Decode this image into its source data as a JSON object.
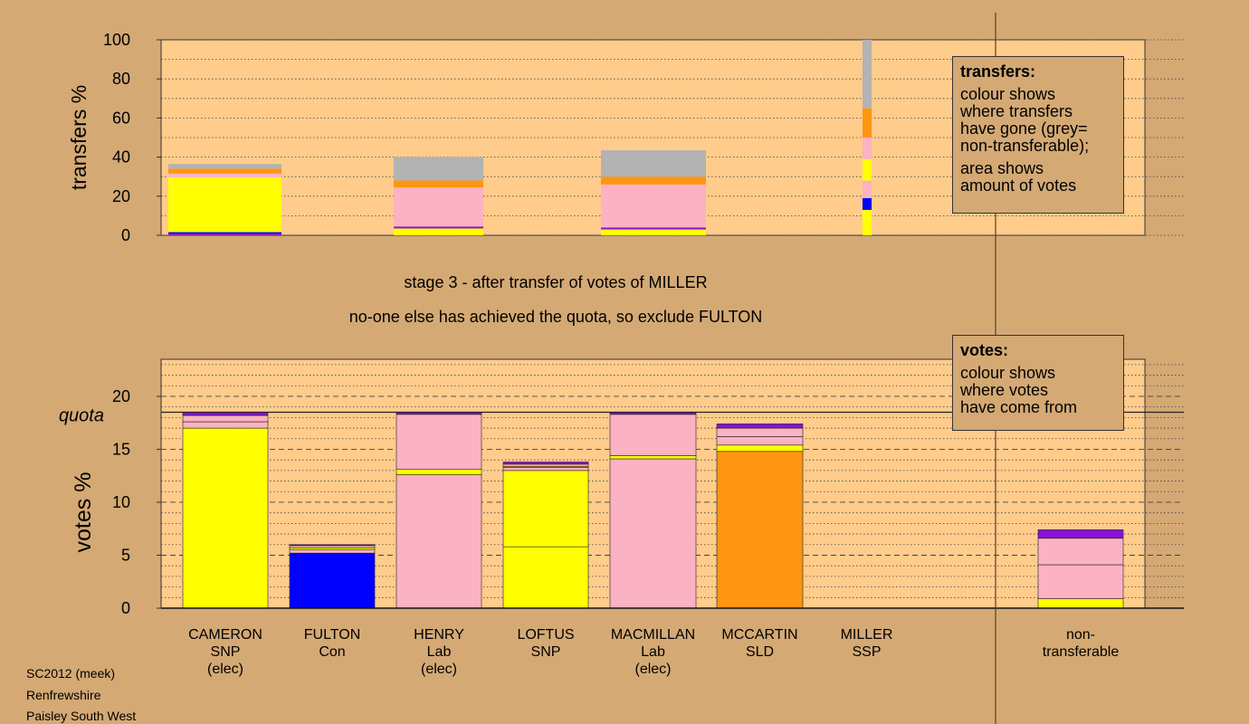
{
  "colors": {
    "background": "#D4A974",
    "plot_bg": "#FFCC8C",
    "SNP": "#FFFF00",
    "Con": "#0000FF",
    "Lab": "#FBB2C2",
    "SLD": "#FF9511",
    "SSP": "#8B10D5",
    "nontransferable": "#B3B3B3"
  },
  "stage_text": {
    "line1": "stage 3 - after transfer of votes of MILLER",
    "line2": "no-one else has achieved the quota, so exclude FULTON"
  },
  "transfers_legend": {
    "title": "transfers:",
    "lines1": [
      "colour shows",
      "where transfers",
      "have gone (grey=",
      "non-transferable);"
    ],
    "lines2": [
      "area shows",
      "amount of votes"
    ]
  },
  "votes_legend": {
    "title": "votes:",
    "lines": [
      "colour shows",
      "where votes",
      "have come from"
    ]
  },
  "footer": [
    "SC2012 (meek)",
    "Renfrewshire",
    "Paisley South West"
  ],
  "chart_data": [
    {
      "type": "bar",
      "stacked": true,
      "name": "transfers",
      "ylabel": "transfers %",
      "ylim": [
        0,
        100
      ],
      "yticks": [
        0,
        20,
        40,
        60,
        80,
        100
      ],
      "grid": "dotted horizontal",
      "bars": [
        {
          "candidate": "CAMERON",
          "width": "wide",
          "segments": [
            {
              "party": "SSP",
              "value": 0.8
            },
            {
              "party": "Con",
              "value": 0.8
            },
            {
              "party": "SNP",
              "value": 28.0
            },
            {
              "party": "Lab",
              "value": 2.0
            },
            {
              "party": "SLD",
              "value": 2.5
            },
            {
              "party": "nontransferable",
              "value": 2.4
            }
          ]
        },
        {
          "candidate": "HENRY",
          "width": "wide",
          "segments": [
            {
              "party": "SNP",
              "value": 3.5
            },
            {
              "party": "SSP",
              "value": 1.0
            },
            {
              "party": "Lab",
              "value": 20.0
            },
            {
              "party": "SLD",
              "value": 3.5
            },
            {
              "party": "nontransferable",
              "value": 12.0
            }
          ]
        },
        {
          "candidate": "MACMILLAN",
          "width": "wide",
          "segments": [
            {
              "party": "SNP",
              "value": 3.0
            },
            {
              "party": "SSP",
              "value": 1.0
            },
            {
              "party": "Lab",
              "value": 22.0
            },
            {
              "party": "SLD",
              "value": 4.0
            },
            {
              "party": "nontransferable",
              "value": 13.5
            }
          ]
        },
        {
          "candidate": "MILLER",
          "width": "narrow",
          "segments": [
            {
              "party": "SNP",
              "value": 13.0
            },
            {
              "party": "Con",
              "value": 6.0
            },
            {
              "party": "Lab",
              "value": 9.0
            },
            {
              "party": "SNP",
              "value": 11.0
            },
            {
              "party": "Lab",
              "value": 11.0
            },
            {
              "party": "SLD",
              "value": 15.0
            },
            {
              "party": "nontransferable",
              "value": 35.0
            }
          ]
        }
      ]
    },
    {
      "type": "bar",
      "stacked": true,
      "name": "votes",
      "ylabel": "votes %",
      "ylim": [
        0,
        23.5
      ],
      "yticks": [
        0,
        5,
        10,
        15,
        20
      ],
      "quota": 18.5,
      "quota_label": "quota",
      "grid": "dashed at major ticks, dotted minor",
      "candidates": [
        {
          "name": "CAMERON",
          "party": "SNP",
          "note": "(elec)",
          "segments": [
            {
              "party": "SNP",
              "value": 17.0
            },
            {
              "party": "Lab",
              "value": 0.6
            },
            {
              "party": "Lab",
              "value": 0.6
            },
            {
              "party": "SSP",
              "value": 0.3
            }
          ]
        },
        {
          "name": "FULTON",
          "party": "Con",
          "note": "",
          "segments": [
            {
              "party": "Con",
              "value": 5.2
            },
            {
              "party": "Lab",
              "value": 0.3
            },
            {
              "party": "SNP",
              "value": 0.2
            },
            {
              "party": "Lab",
              "value": 0.2
            },
            {
              "party": "SSP",
              "value": 0.1
            }
          ]
        },
        {
          "name": "HENRY",
          "party": "Lab",
          "note": "(elec)",
          "segments": [
            {
              "party": "Lab",
              "value": 12.6
            },
            {
              "party": "SNP",
              "value": 0.5
            },
            {
              "party": "Lab",
              "value": 5.2
            },
            {
              "party": "SSP",
              "value": 0.2
            }
          ]
        },
        {
          "name": "LOFTUS",
          "party": "SNP",
          "note": "",
          "segments": [
            {
              "party": "SNP",
              "value": 5.8
            },
            {
              "party": "SNP",
              "value": 7.2
            },
            {
              "party": "Lab",
              "value": 0.3
            },
            {
              "party": "SLD",
              "value": 0.1
            },
            {
              "party": "Lab",
              "value": 0.2
            },
            {
              "party": "SSP",
              "value": 0.2
            }
          ]
        },
        {
          "name": "MACMILLAN",
          "party": "Lab",
          "note": "(elec)",
          "segments": [
            {
              "party": "Lab",
              "value": 14.1
            },
            {
              "party": "SNP",
              "value": 0.3
            },
            {
              "party": "Lab",
              "value": 3.9
            },
            {
              "party": "SSP",
              "value": 0.2
            }
          ]
        },
        {
          "name": "MCCARTIN",
          "party": "SLD",
          "note": "",
          "segments": [
            {
              "party": "SLD",
              "value": 14.8
            },
            {
              "party": "SNP",
              "value": 0.6
            },
            {
              "party": "Lab",
              "value": 0.8
            },
            {
              "party": "Lab",
              "value": 0.8
            },
            {
              "party": "SSP",
              "value": 0.4
            }
          ]
        },
        {
          "name": "MILLER",
          "party": "SSP",
          "note": "",
          "segments": []
        },
        {
          "name": "non-",
          "party": "transferable",
          "note": "",
          "segments": [
            {
              "party": "SNP",
              "value": 0.9
            },
            {
              "party": "Lab",
              "value": 3.2
            },
            {
              "party": "Lab",
              "value": 2.5
            },
            {
              "party": "SSP",
              "value": 0.8
            }
          ]
        }
      ]
    }
  ]
}
